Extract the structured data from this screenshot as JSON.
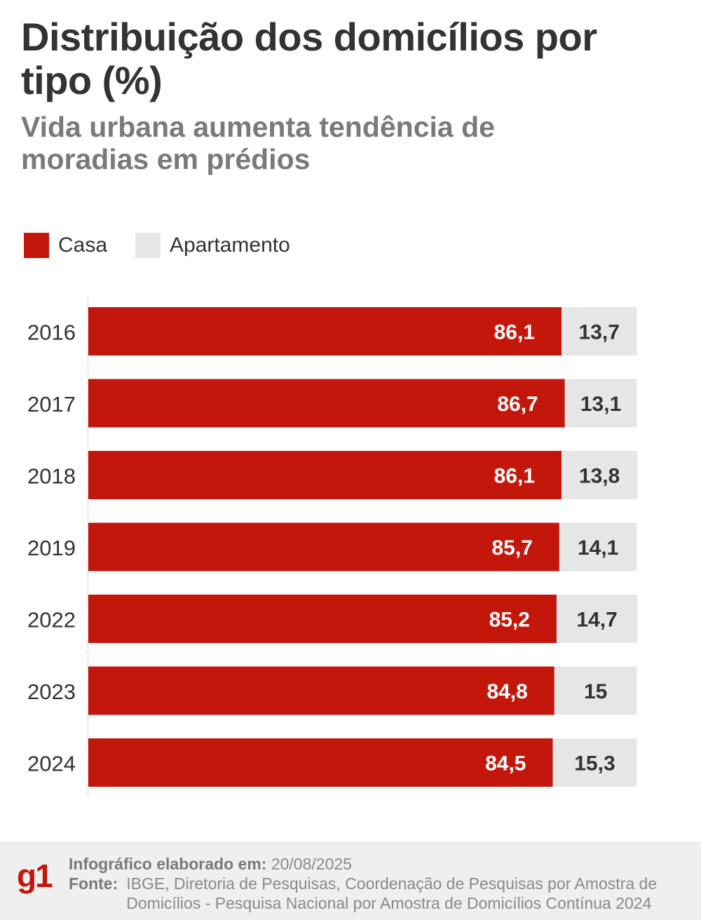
{
  "title": "Distribuição dos domicílios por tipo (%)",
  "subtitle": "Vida urbana aumenta tendência de moradias em prédios",
  "legend": {
    "casa": "Casa",
    "apartamento": "Apartamento"
  },
  "colors": {
    "casa": "#c4170c",
    "apartamento": "#e6e6e6",
    "casa_label": "#ffffff",
    "apartamento_label": "#333333"
  },
  "chart_data": {
    "type": "bar",
    "orientation": "horizontal",
    "stacked": true,
    "categories": [
      "2016",
      "2017",
      "2018",
      "2019",
      "2022",
      "2023",
      "2024"
    ],
    "series": [
      {
        "name": "Casa",
        "values": [
          86.1,
          86.7,
          86.1,
          85.7,
          85.2,
          84.8,
          84.5
        ],
        "labels": [
          "86,1",
          "86,7",
          "86,1",
          "85,7",
          "85,2",
          "84,8",
          "84,5"
        ]
      },
      {
        "name": "Apartamento",
        "values": [
          13.7,
          13.1,
          13.8,
          14.1,
          14.7,
          15,
          15.3
        ],
        "labels": [
          "13,7",
          "13,1",
          "13,8",
          "14,1",
          "14,7",
          "15",
          "15,3"
        ]
      }
    ],
    "xlim": [
      0,
      100
    ]
  },
  "footer": {
    "logo": "g1",
    "credit_label": "Infográfico elaborado em:",
    "credit_date": "20/08/2025",
    "source_label": "Fonte:",
    "source_text": "IBGE, Diretoria de Pesquisas, Coordenação de Pesquisas por Amostra de Domicílios - Pesquisa Nacional por Amostra de Domicílios Contínua 2024"
  }
}
